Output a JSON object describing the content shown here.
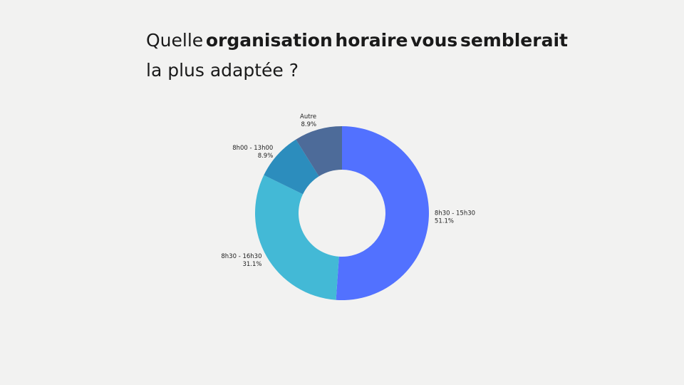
{
  "title": {
    "prefix": "Quelle",
    "words_bold": [
      "organisation",
      "horaire",
      "vous",
      "semblerait"
    ],
    "line2": "la plus adaptée ?"
  },
  "chart_data": {
    "type": "pie",
    "donut": true,
    "title": "Quelle organisation horaire vous semblerait la plus adaptée ?",
    "slices": [
      {
        "label": "8h30 - 15h30",
        "value": 51.1,
        "value_label": "51.1%",
        "color": "#5271ff"
      },
      {
        "label": "8h30 - 16h30",
        "value": 31.1,
        "value_label": "31.1%",
        "color": "#43b9d6"
      },
      {
        "label": "8h00 - 13h00",
        "value": 8.9,
        "value_label": "8.9%",
        "color": "#2c8dbd"
      },
      {
        "label": "Autre",
        "value": 8.9,
        "value_label": "8.9%",
        "color": "#4d6b99"
      }
    ],
    "legend": "none"
  }
}
